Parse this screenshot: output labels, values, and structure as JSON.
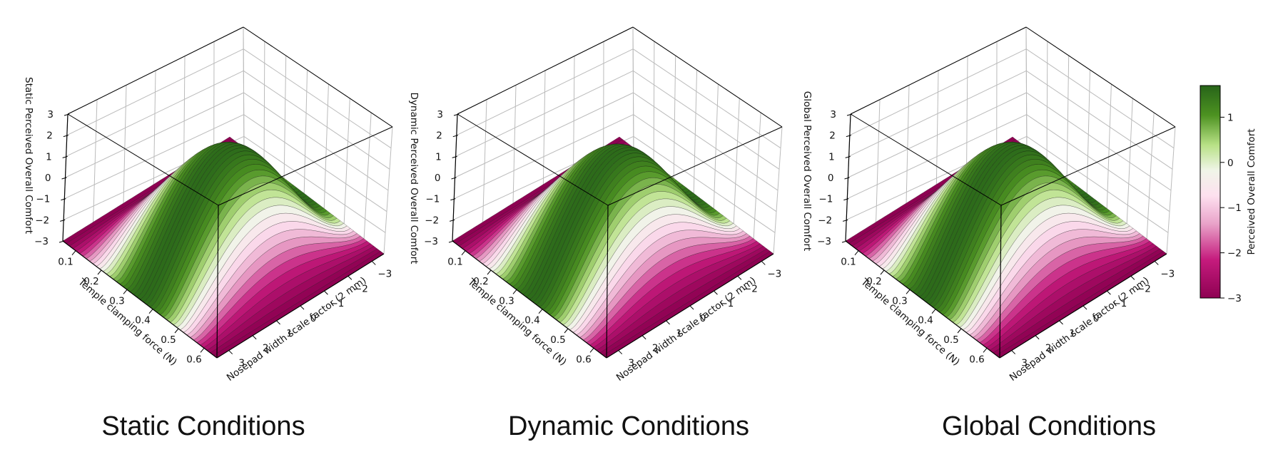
{
  "figure": {
    "panels": [
      {
        "caption": "Static Conditions",
        "zlabel": "Static Perceived Overall Comfort",
        "ylabel": "Temple clamping force (N)",
        "xlabel": "Nosepad width scale factor (2 mm)"
      },
      {
        "caption": "Dynamic Conditions",
        "zlabel": "Dynamic Perceived Overall Comfort",
        "ylabel": "Temple clamping force (N)",
        "xlabel": "Nosepad width scale factor (2 mm)"
      },
      {
        "caption": "Global Conditions",
        "zlabel": "Global Perceived Overall Comfort",
        "ylabel": "Temple clamping force (N)",
        "xlabel": "Nosepad width scale factor (2 mm)"
      }
    ],
    "colorbar": {
      "label": "Perceived Overall Comfort",
      "ticks": [
        "1",
        "0",
        "−1",
        "−2",
        "−3"
      ]
    }
  },
  "chart_data": [
    {
      "type": "surface",
      "title": "Static Conditions",
      "xlabel": "Nosepad width scale factor (2 mm)",
      "ylabel": "Temple clamping force (N)",
      "zlabel": "Static Perceived Overall Comfort",
      "x_range": [
        -3,
        3
      ],
      "y_range": [
        0.05,
        0.65
      ],
      "zlim": [
        -3,
        3
      ],
      "x_ticks": [
        "3",
        "2",
        "1",
        "0",
        "−1",
        "−2",
        "−3"
      ],
      "y_ticks": [
        "0.1",
        "0.2",
        "0.3",
        "0.4",
        "0.5",
        "0.6"
      ],
      "z_ticks": [
        "3",
        "2",
        "1",
        "0",
        "−1",
        "−2",
        "−3"
      ],
      "peak_value": 1.7,
      "floor_value": -3
    },
    {
      "type": "surface",
      "title": "Dynamic Conditions",
      "xlabel": "Nosepad width scale factor (2 mm)",
      "ylabel": "Temple clamping force (N)",
      "zlabel": "Dynamic Perceived Overall Comfort",
      "x_range": [
        -3,
        3
      ],
      "y_range": [
        0.05,
        0.65
      ],
      "zlim": [
        -3,
        3
      ],
      "x_ticks": [
        "3",
        "2",
        "1",
        "0",
        "−1",
        "−2",
        "−3"
      ],
      "y_ticks": [
        "0.1",
        "0.2",
        "0.3",
        "0.4",
        "0.5",
        "0.6"
      ],
      "z_ticks": [
        "3",
        "2",
        "1",
        "0",
        "−1",
        "−2",
        "−3"
      ],
      "peak_value": 1.6,
      "floor_value": -3
    },
    {
      "type": "surface",
      "title": "Global Conditions",
      "xlabel": "Nosepad width scale factor (2 mm)",
      "ylabel": "Temple clamping force (N)",
      "zlabel": "Global Perceived Overall Comfort",
      "x_range": [
        -3,
        3
      ],
      "y_range": [
        0.05,
        0.65
      ],
      "zlim": [
        -3,
        3
      ],
      "x_ticks": [
        "3",
        "2",
        "1",
        "0",
        "−1",
        "−2",
        "−3"
      ],
      "y_ticks": [
        "0.1",
        "0.2",
        "0.3",
        "0.4",
        "0.5",
        "0.6"
      ],
      "z_ticks": [
        "3",
        "2",
        "1",
        "0",
        "−1",
        "−2",
        "−3"
      ],
      "peak_value": 1.7,
      "floor_value": -3
    }
  ],
  "colors": {
    "cmap_low": "#8e0152",
    "cmap_mid": "#f7f7f7",
    "cmap_high": "#276419",
    "pane_grid": "#bbbbbb",
    "edge_line": "#000000"
  }
}
